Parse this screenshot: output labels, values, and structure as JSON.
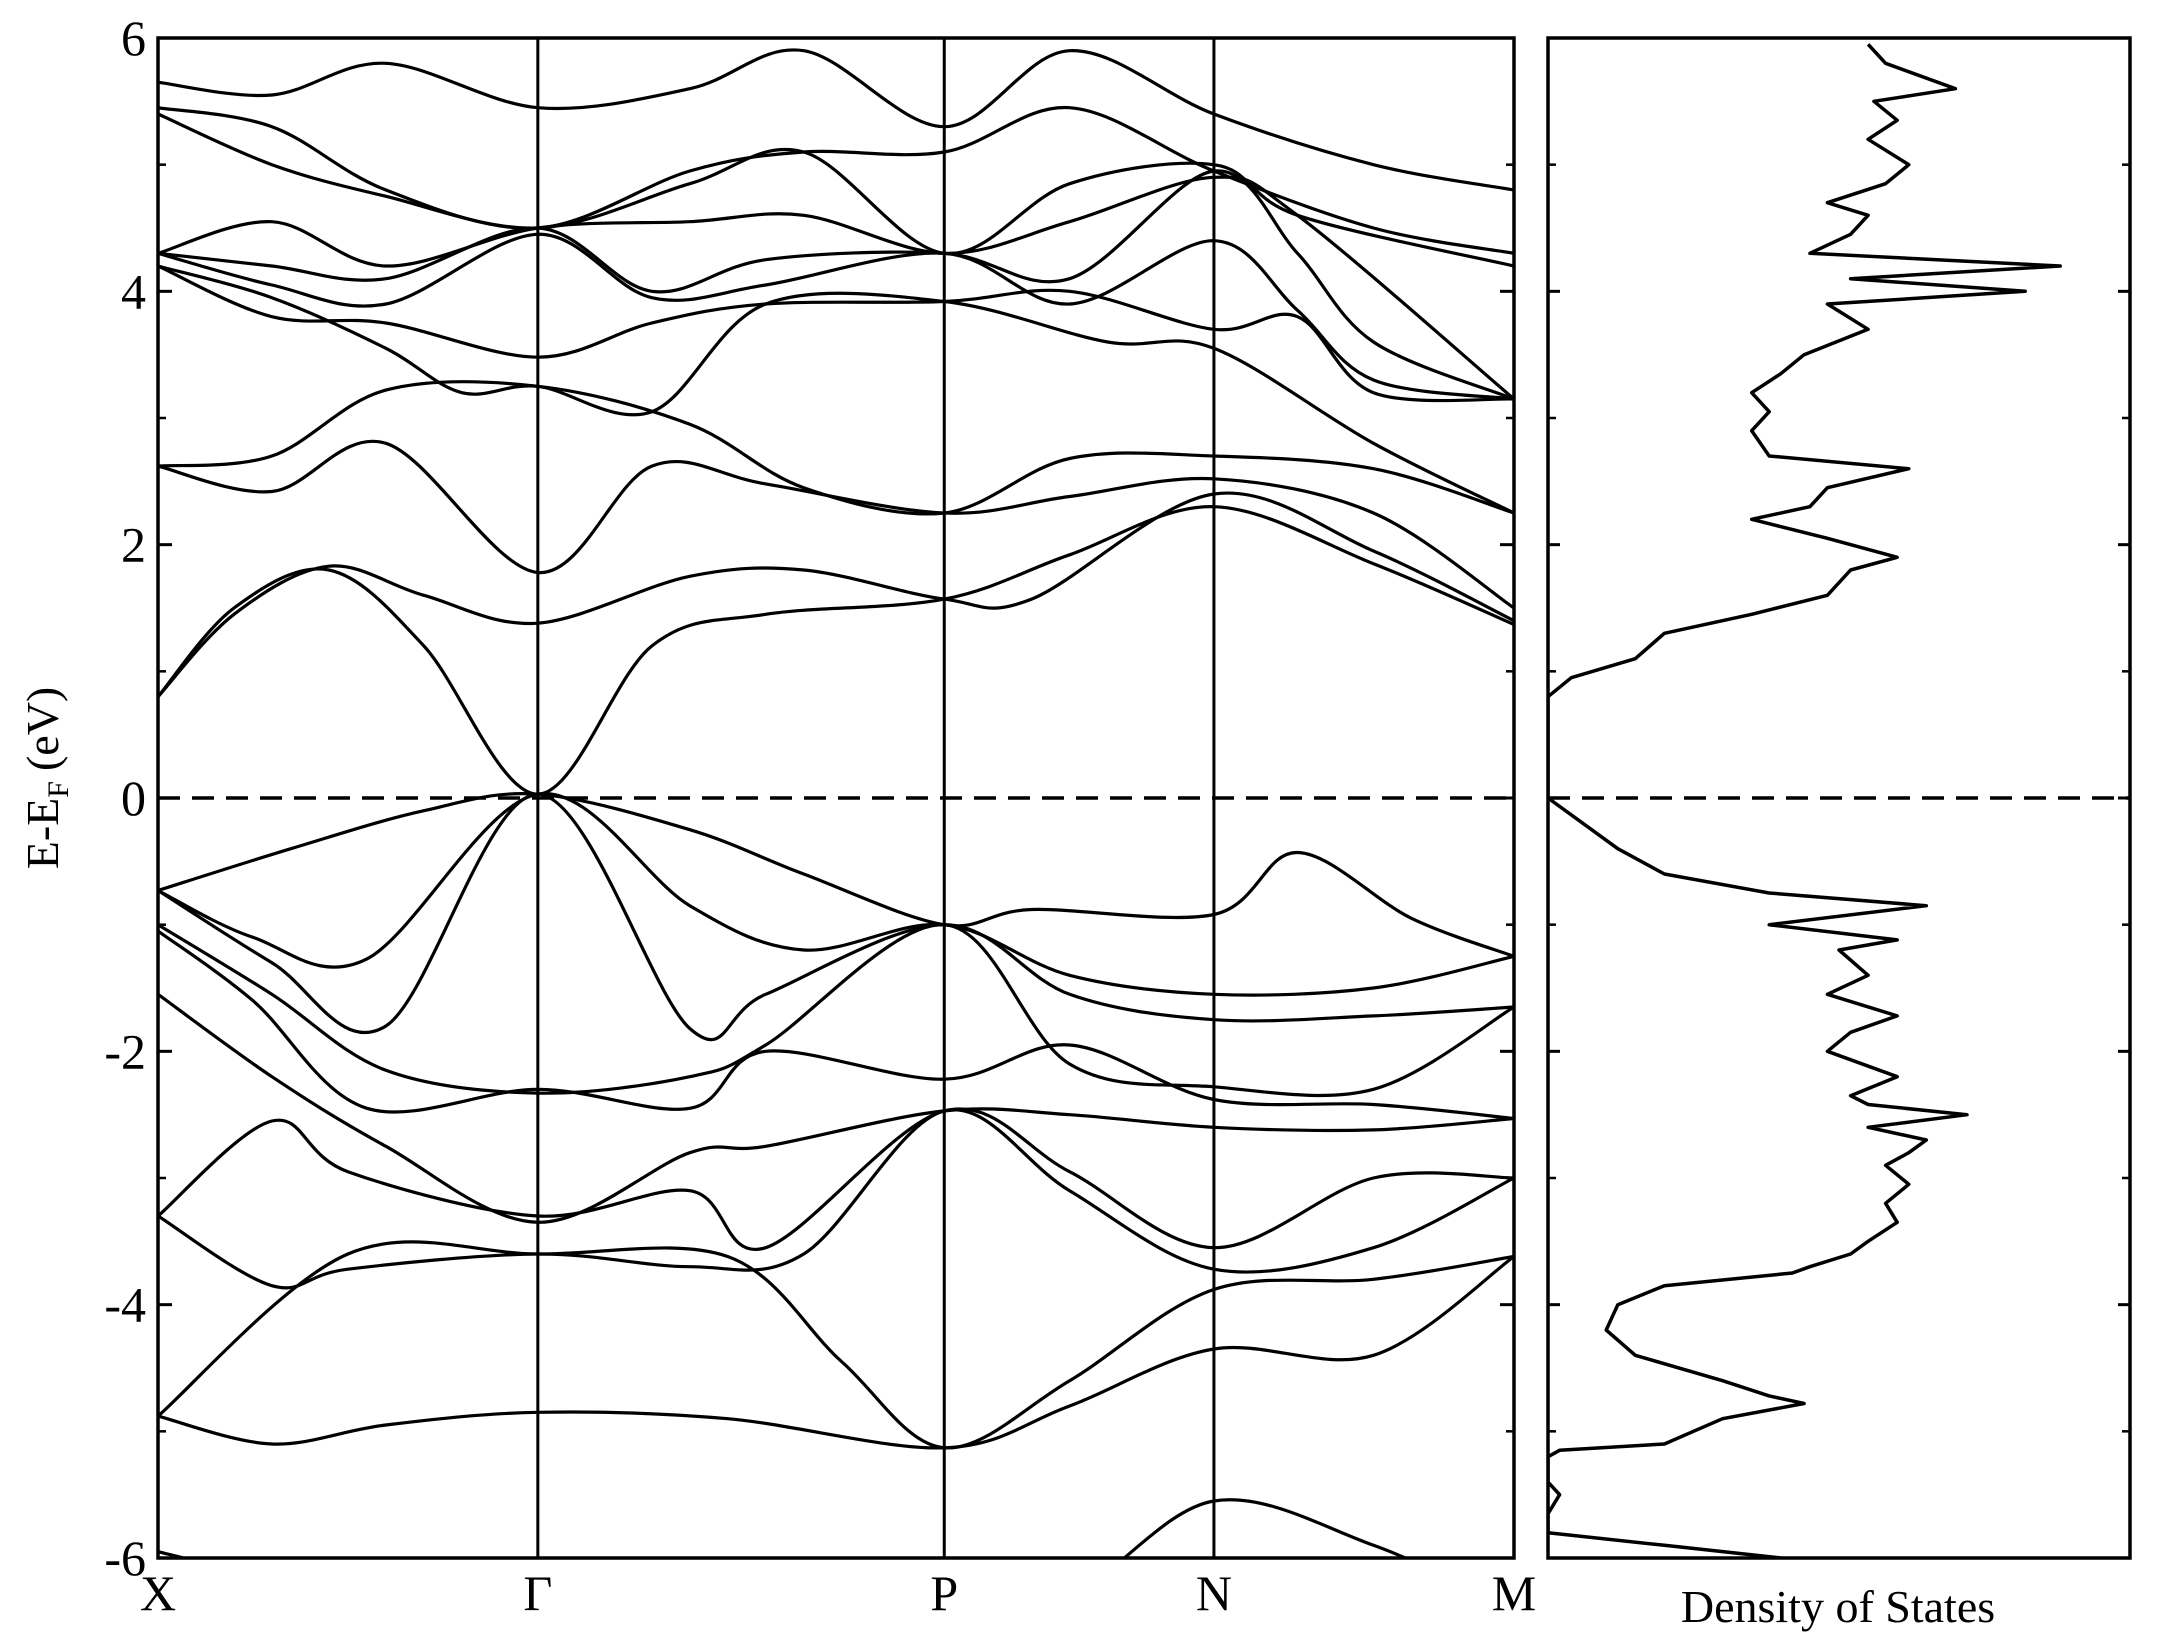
{
  "chart_data": [
    {
      "type": "line",
      "title": "",
      "ylabel": "E-E_F (eV)",
      "ylabel_main": "E-E",
      "ylabel_sub": "F",
      "ylabel_unit": "(eV)",
      "xlabel": "",
      "ylim": [
        -6,
        6
      ],
      "y_ticks": [
        -6,
        -4,
        -2,
        0,
        2,
        4,
        6
      ],
      "y_tick_labels": [
        "-6",
        "-4",
        "-2",
        "0",
        "2",
        "4",
        "6"
      ],
      "k_points": [
        "X",
        "Γ",
        "P",
        "N",
        "M"
      ],
      "k_positions": [
        0,
        1,
        2.07,
        2.78,
        3.57
      ],
      "fermi_level": 0,
      "fermi_style": "dashed",
      "grid": false,
      "legend": "none",
      "line_color": "#000000",
      "bands": [
        {
          "x": [
            0,
            0.5,
            1,
            1.5,
            2.07,
            2.4,
            2.78,
            3.2,
            3.57
          ],
          "y": [
            -5.95,
            -6.3,
            -6.5,
            -6.3,
            -6.4,
            -6.3,
            -5.55,
            -5.9,
            -6.4
          ]
        },
        {
          "x": [
            0,
            0.3,
            0.6,
            1,
            1.5,
            2.07,
            2.4,
            2.78,
            3.2,
            3.57
          ],
          "y": [
            -4.88,
            -5.1,
            -4.95,
            -4.85,
            -4.9,
            -5.13,
            -4.8,
            -4.35,
            -4.4,
            -3.62
          ]
        },
        {
          "x": [
            0,
            0.5,
            1,
            1.5,
            1.8,
            2.07,
            2.4,
            2.78,
            3.2,
            3.57
          ],
          "y": [
            -4.88,
            -3.6,
            -3.6,
            -3.62,
            -4.45,
            -5.13,
            -4.6,
            -3.88,
            -3.8,
            -3.62
          ]
        },
        {
          "x": [
            0,
            0.3,
            0.5,
            1,
            1.4,
            1.7,
            2.07,
            2.4,
            2.78,
            3.2,
            3.57
          ],
          "y": [
            -3.3,
            -3.85,
            -3.72,
            -3.6,
            -3.7,
            -3.6,
            -2.47,
            -3.1,
            -3.72,
            -3.55,
            -3.0
          ]
        },
        {
          "x": [
            0,
            0.3,
            0.5,
            1,
            1.4,
            1.6,
            2.07,
            2.4,
            2.78,
            3.2,
            3.57
          ],
          "y": [
            -3.3,
            -2.55,
            -2.95,
            -3.3,
            -3.1,
            -3.55,
            -2.47,
            -2.95,
            -3.55,
            -3.0,
            -3.0
          ]
        },
        {
          "x": [
            0,
            0.3,
            0.6,
            1,
            1.4,
            1.6,
            2.07,
            2.4,
            2.78,
            3.2,
            3.57
          ],
          "y": [
            -1.55,
            -2.2,
            -2.75,
            -3.35,
            -2.8,
            -2.75,
            -2.47,
            -2.5,
            -2.6,
            -2.62,
            -2.53
          ]
        },
        {
          "x": [
            0,
            0.25,
            0.55,
            1,
            1.4,
            1.6,
            2.07,
            2.4,
            2.78,
            3.2,
            3.57
          ],
          "y": [
            -1.05,
            -1.6,
            -2.45,
            -2.3,
            -2.45,
            -2.0,
            -2.22,
            -1.95,
            -2.38,
            -2.42,
            -2.53
          ]
        },
        {
          "x": [
            0,
            0.3,
            0.6,
            1,
            1.4,
            1.6,
            2.07,
            2.4,
            2.78,
            3.2,
            3.57
          ],
          "y": [
            -1.0,
            -1.55,
            -2.15,
            -2.33,
            -2.2,
            -1.95,
            -1.0,
            -2.1,
            -2.28,
            -2.3,
            -1.65
          ]
        },
        {
          "x": [
            0,
            0.3,
            0.6,
            1,
            1.4,
            1.6,
            2.07,
            2.4,
            2.78,
            3.2,
            3.57
          ],
          "y": [
            -0.73,
            -1.3,
            -1.8,
            0.03,
            -1.82,
            -1.55,
            -1.0,
            -1.55,
            -1.75,
            -1.72,
            -1.65
          ]
        },
        {
          "x": [
            0,
            0.25,
            0.55,
            1,
            1.4,
            1.7,
            2.07,
            2.4,
            2.78,
            3.2,
            3.57
          ],
          "y": [
            -0.73,
            -1.1,
            -1.27,
            0.03,
            -0.85,
            -1.2,
            -1.0,
            -1.4,
            -1.55,
            -1.5,
            -1.25
          ]
        },
        {
          "x": [
            0,
            0.35,
            0.7,
            1,
            1.4,
            1.7,
            2.07,
            2.3,
            2.78,
            3.0,
            3.3,
            3.57
          ],
          "y": [
            -0.73,
            -0.4,
            -0.1,
            0.03,
            -0.25,
            -0.6,
            -1.0,
            -0.88,
            -0.92,
            -0.43,
            -0.95,
            -1.25
          ]
        },
        {
          "x": [
            0,
            0.2,
            0.45,
            0.7,
            1,
            1.3,
            1.6,
            2.07,
            2.4,
            2.78,
            3.2,
            3.57
          ],
          "y": [
            0.8,
            1.5,
            1.8,
            1.2,
            0.03,
            1.2,
            1.45,
            1.57,
            1.92,
            2.3,
            1.85,
            1.37
          ]
        },
        {
          "x": [
            0,
            0.2,
            0.45,
            0.7,
            1,
            1.4,
            1.7,
            2.07,
            2.3,
            2.78,
            3.2,
            3.57
          ],
          "y": [
            0.8,
            1.45,
            1.83,
            1.6,
            1.38,
            1.75,
            1.8,
            1.57,
            1.57,
            2.4,
            1.95,
            1.4
          ]
        },
        {
          "x": [
            0,
            0.3,
            0.6,
            1,
            1.3,
            1.6,
            2.07,
            2.4,
            2.78,
            3.2,
            3.57
          ],
          "y": [
            2.62,
            2.42,
            2.8,
            1.78,
            2.62,
            2.48,
            2.25,
            2.38,
            2.52,
            2.25,
            1.5
          ]
        },
        {
          "x": [
            0,
            0.3,
            0.6,
            1,
            1.4,
            1.7,
            2.07,
            2.4,
            2.78,
            3.2,
            3.57
          ],
          "y": [
            2.62,
            2.7,
            3.22,
            3.25,
            2.95,
            2.45,
            2.25,
            2.68,
            2.7,
            2.6,
            2.25
          ]
        },
        {
          "x": [
            0,
            0.3,
            0.6,
            0.8,
            1,
            1.3,
            1.6,
            2.07,
            2.5,
            2.78,
            3.2,
            3.57
          ],
          "y": [
            4.2,
            3.95,
            3.55,
            3.2,
            3.25,
            3.05,
            3.9,
            3.92,
            3.6,
            3.55,
            2.8,
            2.25
          ]
        },
        {
          "x": [
            0,
            0.3,
            0.6,
            1,
            1.3,
            1.6,
            2.07,
            2.4,
            2.78,
            3.0,
            3.2,
            3.57
          ],
          "y": [
            4.2,
            3.8,
            3.75,
            3.48,
            3.75,
            3.9,
            3.92,
            4.0,
            3.7,
            3.8,
            3.2,
            3.15
          ]
        },
        {
          "x": [
            0,
            0.3,
            0.6,
            1,
            1.3,
            1.6,
            2.07,
            2.4,
            2.78,
            3.0,
            3.2,
            3.57
          ],
          "y": [
            4.3,
            4.05,
            3.9,
            4.45,
            3.95,
            4.05,
            4.3,
            3.9,
            4.4,
            3.85,
            3.3,
            3.15
          ]
        },
        {
          "x": [
            0,
            0.3,
            0.6,
            1,
            1.3,
            1.6,
            2.07,
            2.4,
            2.78,
            3.0,
            3.2,
            3.57
          ],
          "y": [
            4.3,
            4.2,
            4.1,
            4.5,
            4.0,
            4.25,
            4.3,
            4.1,
            4.95,
            4.3,
            3.6,
            3.15
          ]
        },
        {
          "x": [
            0,
            0.3,
            0.6,
            1,
            1.4,
            1.7,
            2.07,
            2.4,
            2.78,
            3.0,
            3.57
          ],
          "y": [
            4.3,
            4.55,
            4.2,
            4.5,
            4.55,
            4.6,
            4.3,
            4.55,
            4.9,
            4.6,
            3.15
          ]
        },
        {
          "x": [
            0,
            0.3,
            0.6,
            1,
            1.4,
            1.7,
            2.07,
            2.4,
            2.78,
            3.0,
            3.57
          ],
          "y": [
            5.4,
            5.0,
            4.75,
            4.5,
            4.85,
            5.1,
            4.3,
            4.85,
            5.0,
            4.6,
            4.2
          ]
        },
        {
          "x": [
            0,
            0.3,
            0.6,
            1,
            1.4,
            1.7,
            2.07,
            2.4,
            2.78,
            3.2,
            3.57
          ],
          "y": [
            5.45,
            5.3,
            4.8,
            4.5,
            4.95,
            5.1,
            5.1,
            5.45,
            4.95,
            4.5,
            4.3
          ]
        },
        {
          "x": [
            0,
            0.3,
            0.6,
            1,
            1.4,
            1.7,
            2.07,
            2.4,
            2.78,
            3.2,
            3.57
          ],
          "y": [
            5.65,
            5.55,
            5.8,
            5.45,
            5.6,
            5.9,
            5.3,
            5.9,
            5.4,
            5.0,
            4.8
          ]
        }
      ]
    },
    {
      "type": "line",
      "title": "",
      "xlabel": "Density of States",
      "ylim": [
        -6,
        6
      ],
      "fermi_level": 0,
      "y": [
        -6.0,
        -5.9,
        -5.8,
        -5.65,
        -5.5,
        -5.4,
        -5.3,
        -5.2,
        -5.15,
        -5.1,
        -5.0,
        -4.9,
        -4.78,
        -4.72,
        -4.6,
        -4.4,
        -4.2,
        -4.0,
        -3.85,
        -3.75,
        -3.7,
        -3.6,
        -3.5,
        -3.35,
        -3.2,
        -3.05,
        -2.9,
        -2.8,
        -2.7,
        -2.6,
        -2.5,
        -2.42,
        -2.35,
        -2.2,
        -2.0,
        -1.85,
        -1.72,
        -1.55,
        -1.4,
        -1.2,
        -1.12,
        -1.0,
        -0.85,
        -0.75,
        -0.6,
        -0.4,
        -0.2,
        0.0,
        0.2,
        0.5,
        0.8,
        0.95,
        1.1,
        1.3,
        1.45,
        1.6,
        1.8,
        1.9,
        2.05,
        2.2,
        2.3,
        2.45,
        2.6,
        2.7,
        2.9,
        3.05,
        3.2,
        3.35,
        3.5,
        3.7,
        3.9,
        4.0,
        4.1,
        4.2,
        4.3,
        4.45,
        4.6,
        4.7,
        4.85,
        5.0,
        5.2,
        5.35,
        5.5,
        5.6,
        5.8,
        5.95
      ],
      "x": [
        0.4,
        0.2,
        0.0,
        0.0,
        0.02,
        0.0,
        0.0,
        0.0,
        0.02,
        0.2,
        0.25,
        0.3,
        0.44,
        0.38,
        0.3,
        0.15,
        0.1,
        0.12,
        0.2,
        0.42,
        0.45,
        0.52,
        0.55,
        0.6,
        0.58,
        0.62,
        0.58,
        0.62,
        0.65,
        0.55,
        0.72,
        0.55,
        0.52,
        0.6,
        0.48,
        0.52,
        0.6,
        0.48,
        0.55,
        0.5,
        0.6,
        0.38,
        0.65,
        0.38,
        0.2,
        0.12,
        0.06,
        0.0,
        0.0,
        0.0,
        0.0,
        0.04,
        0.15,
        0.2,
        0.35,
        0.48,
        0.52,
        0.6,
        0.48,
        0.35,
        0.45,
        0.48,
        0.62,
        0.38,
        0.35,
        0.38,
        0.35,
        0.4,
        0.44,
        0.55,
        0.48,
        0.82,
        0.52,
        0.88,
        0.45,
        0.52,
        0.55,
        0.48,
        0.58,
        0.62,
        0.55,
        0.6,
        0.56,
        0.7,
        0.58,
        0.55
      ],
      "line_color": "#000000"
    }
  ]
}
